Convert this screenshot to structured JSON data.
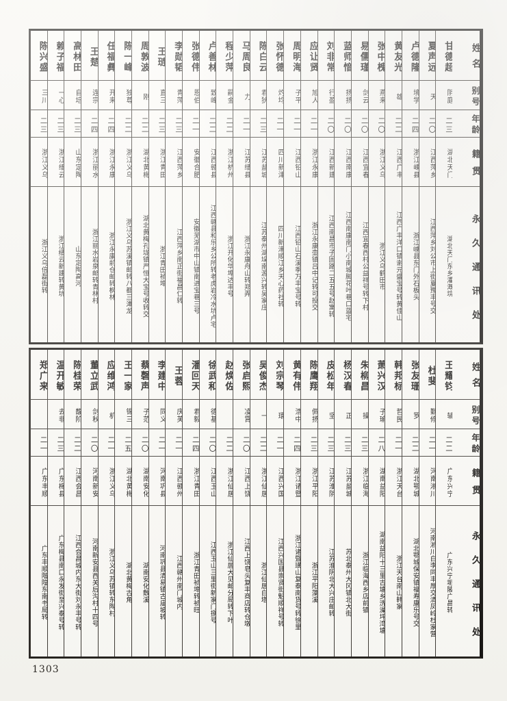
{
  "page": {
    "number": "1303"
  },
  "headers": {
    "name": "姓名",
    "alias": "别号",
    "age": "年龄",
    "native": "籍贯",
    "address": "永久通讯处"
  },
  "tables": [
    {
      "id": "top-table",
      "people": [
        {
          "name": "甘德超",
          "alias": "阴庭",
          "age": "二三",
          "native": "湖北天门",
          "address": "湖北天门东乡灌溉垸"
        },
        {
          "name": "夏声远",
          "alias": "天",
          "age": "二〇",
          "native": "江西萍乡",
          "address": "江西萍乡刘公市上街夏豫丰号交"
        },
        {
          "name": "卢德隆",
          "alias": "境学",
          "age": "二四",
          "native": "浙江嵊县",
          "address": "浙江嵊县东门外石板头"
        },
        {
          "name": "黄友光",
          "alias": "雄",
          "age": "二二",
          "native": "江西广丰",
          "address": "江西广丰洋口镇谢元盛宝号转黄佳山"
        },
        {
          "name": "张中槐",
          "alias": "燕来",
          "age": "二〇",
          "native": "浙江义乌",
          "address": "浙江义乌鹤田市"
        },
        {
          "name": "易儒瑾",
          "alias": "剑云",
          "age": "二〇",
          "native": "江西宜春",
          "address": "江西宜春西村公益祥号转下村"
        },
        {
          "name": "蓝师愔",
          "alias": "扬扬",
          "age": "二〇",
          "native": "江西南康",
          "address": "江西南康南门小南城脚花叶巷口蓝宅"
        },
        {
          "name": "刘非常",
          "alias": "行盈",
          "age": "二〇",
          "native": "江西新建",
          "address": "江西南昌市子固路二五五号赵寓转"
        },
        {
          "name": "应让贤",
          "alias": "旭人",
          "age": "二一",
          "native": "浙江永康",
          "address": "浙江永康壶镇吕中记转可投交"
        },
        {
          "name": "周明海",
          "alias": "子平",
          "age": "二一",
          "native": "江西铅山",
          "address": "江西铅山石溪季万丰宝号转"
        },
        {
          "name": "张怀德",
          "alias": "灼均",
          "age": "二一",
          "native": "四川新津",
          "address": "四川新津顺江乡天心药社转"
        },
        {
          "name": "陈白云",
          "alias": "君狄",
          "age": "二三",
          "native": "江苏盐城",
          "address": "江苏泰州湖垛南源兴转吴家庄"
        },
        {
          "name": "马周良",
          "alias": "力",
          "age": "二一",
          "native": "江苏缙县",
          "address": "浙江永康舟山转郑弄"
        },
        {
          "name": "程少萍",
          "alias": "嗣金",
          "age": "二二",
          "native": "浙江杭州",
          "address": "浙江开化华埠达丰号"
        },
        {
          "name": "卢善林",
          "alias": "致峰",
          "age": "二二",
          "native": "江西赣县",
          "address": "江西赣县和乐乡公所转老虎岩冷水坑卢宅"
        },
        {
          "name": "张德伟",
          "alias": "恩伯",
          "age": "二一",
          "native": "安徽合肥",
          "address": "安徽芜湖市中山镇南进宝巷三号"
        },
        {
          "name": "李勋韬",
          "alias": "青萍",
          "age": "二三",
          "native": "江西萍乡",
          "address": "江西萍乡南正街福昌仁转"
        },
        {
          "name": "王琏",
          "alias": "直三",
          "age": "二三",
          "native": "浙江青田",
          "address": "浙江青田祯埠"
        },
        {
          "name": "周敦波",
          "alias": "刚",
          "age": "二二",
          "native": "湖北黄梅",
          "address": "湖北黄梅孔垅镇严恒大宝号收转交"
        },
        {
          "name": "陈一峰",
          "alias": "独尊",
          "age": "二二",
          "native": "浙江义乌",
          "address": "浙江义乌苏溪镇邮转八都三潭龙"
        },
        {
          "name": "任福彝",
          "alias": "开来",
          "age": "二四",
          "native": "浙江永康",
          "address": "浙江永康前仓邮转枫林"
        },
        {
          "name": "王楚",
          "alias": "连宗",
          "age": "二四",
          "native": "浙江丽水",
          "address": "浙江丽水岩泉邮转青林村"
        },
        {
          "name": "高林田",
          "alias": "自培",
          "age": "二三",
          "native": "山东定陶",
          "address": "山东定陶高河"
        },
        {
          "name": "赖子福",
          "alias": "一心",
          "age": "二三",
          "native": "浙江缙云",
          "address": "浙江缙云新建转黄坑"
        },
        {
          "name": "陈兴盛",
          "alias": "三川",
          "age": "二三",
          "native": "浙江义乌",
          "address": "浙江义乌倍磊街转"
        }
      ]
    },
    {
      "id": "bottom-table",
      "people": [
        {
          "name": "王耀钧",
          "alias": "辅",
          "age": "二二",
          "native": "广东兴宁",
          "address": "广东兴宁坭陂广昌转"
        },
        {
          "name": "杜斐",
          "alias": "勤修",
          "age": "二一",
          "native": "河南淅川",
          "address": "河南淅川白李同丰厚交清凤岭杜家营"
        },
        {
          "name": "张友珊",
          "alias": "罗",
          "age": "二二",
          "native": "湖北鄂城",
          "address": "湖北鄂城保安镇福寿康乐号交"
        },
        {
          "name": "韩邦标",
          "alias": "哲民",
          "age": "二一",
          "native": "浙江天台",
          "address": "浙江天台南山韩家"
        },
        {
          "name": "萧兴汉",
          "alias": "子瑜",
          "age": "二八",
          "native": "湖南益阳",
          "address": "湖南益阳十三里古塘乡洗澡坪湾塘"
        },
        {
          "name": "朱柳昌",
          "alias": "操",
          "age": "二三",
          "native": "浙江临海",
          "address": "浙江临海西乡店前镇"
        },
        {
          "name": "杨汉春",
          "alias": "正",
          "age": "二三",
          "native": "江苏盐城",
          "address": "苏北泰州大冈镇北大街"
        },
        {
          "name": "皮松年",
          "alias": "坚",
          "age": "二三",
          "native": "江苏淮阴",
          "address": "江苏淮阴北大兴庄邮转"
        },
        {
          "name": "陈鹰翔",
          "alias": "佩扬",
          "age": "二三",
          "native": "浙江平阳",
          "address": "浙江平阳藻溪"
        },
        {
          "name": "黄有伟",
          "alias": "浩中",
          "age": "二四",
          "native": "浙江诸暨",
          "address": "浙江诸暨璜山复泰南货号转徐里"
        },
        {
          "name": "刘宗琴",
          "alias": "環",
          "age": "二一",
          "native": "江西兴国",
          "address": "江西兴国县崇贤街魁顺祥号转"
        },
        {
          "name": "吴俊杰",
          "alias": "一",
          "age": "二二",
          "native": "浙江仙居",
          "address": "浙江仙居白塔"
        },
        {
          "name": "张启熙",
          "alias": "凌霄",
          "age": "二〇",
          "native": "江西上饶",
          "address": "江西上饶皂头复丰商店转仓墩"
        },
        {
          "name": "赵焕佐",
          "alias": "",
          "age": "二二",
          "native": "浙江仙居",
          "address": "浙江仙居大见邮分局转下叶"
        },
        {
          "name": "徐武和",
          "alias": "德基",
          "age": "二〇",
          "native": "江西玉山",
          "address": "江西玉山三里街新家门捌号"
        },
        {
          "name": "潘回天",
          "alias": "君毅",
          "age": "二四",
          "native": "浙江青田",
          "address": "浙江青田祯埠转祯旺"
        },
        {
          "name": "王蓉",
          "alias": "庆芙",
          "age": "二一",
          "native": "江西赣州",
          "address": "江西赣州南门城内"
        },
        {
          "name": "李建中",
          "alias": "同义",
          "age": "二一",
          "native": "河南巩县",
          "address": "河南巩县清易镇古庙坡转"
        },
        {
          "name": "蔡磬声",
          "alias": "子范",
          "age": "二〇",
          "native": "湖南安化",
          "address": "湖南安化敷溪"
        },
        {
          "name": "王一家",
          "alias": "锡三",
          "age": "二五",
          "native": "湖北黄梅",
          "address": "湖北黄梅古角"
        },
        {
          "name": "应维鸿",
          "alias": "机",
          "age": "二一",
          "native": "浙江义乌",
          "address": "浙江义乌苏镇转东陶村"
        },
        {
          "name": "董立武",
          "alias": "剑秋",
          "age": "二〇",
          "native": "河南新安",
          "address": "河南新安县西关后沟村十四号"
        },
        {
          "name": "陈桂荣",
          "alias": "馥阶",
          "age": "二二",
          "native": "江西会昌",
          "address": "江西会昌城内东大街刘永丰号转"
        },
        {
          "name": "温开敏",
          "alias": "去非",
          "age": "二三",
          "native": "广东梅县",
          "address": "广东梅县南口永发街至兴泰号转"
        },
        {
          "name": "郑广来",
          "alias": "",
          "age": "二一",
          "native": "广东丰顺",
          "address": "广东丰顺階隍东南书局转"
        }
      ]
    }
  ]
}
